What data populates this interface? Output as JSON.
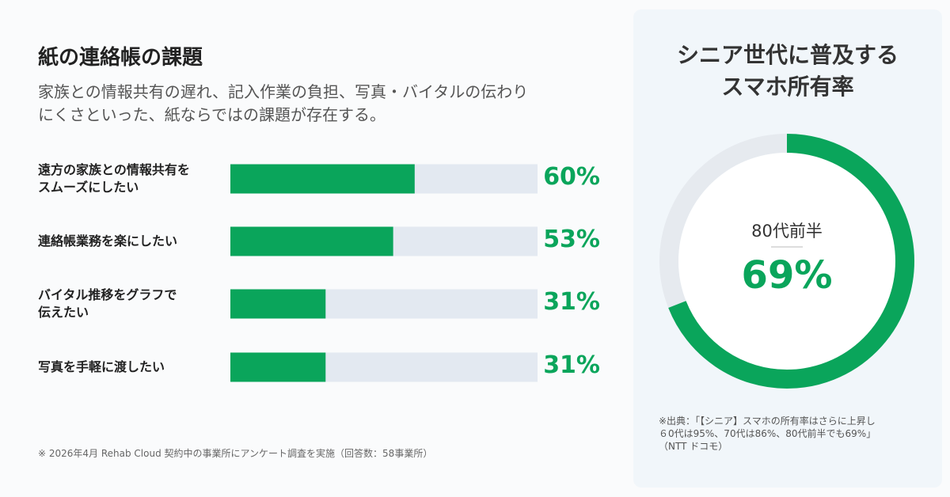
{
  "chart_data": [
    {
      "type": "hbar",
      "title": "紙の連絡帳の課題",
      "subtitle": "家族との情報共有の遅れ、記入作業の負担、写真・バイタルの伝わり\nにくさといった、紙ならではの課題が存在する。",
      "categories": [
        "遠方の家族との情報共有を\nスムーズにしたい",
        "連絡帳業務を楽にしたい",
        "バイタル推移をグラフで\n伝えたい",
        "写真を手軽に渡したい"
      ],
      "values": [
        60,
        53,
        31,
        31
      ],
      "value_labels": [
        "60%",
        "53%",
        "31%",
        "31%"
      ],
      "xlim": [
        0,
        100
      ],
      "color": "#0aa55b",
      "track_color": "#e3e9f1",
      "footnote": "※ 2026年4月 Rehab Cloud 契約中の事業所にアンケート調査を実施（回答数：58事業所）"
    },
    {
      "type": "donut",
      "title": "シニア世代に普及する\nスマホ所有率",
      "label": "80代前半",
      "values": [
        69
      ],
      "value_labels": [
        "69%"
      ],
      "ylim": [
        0,
        100
      ],
      "color": "#0aa55b",
      "track_color": "#e6eaef",
      "source": "※出典：「【シニア】スマホの所有率はさらに上昇し\n６0代は95%、70代は86%、80代前半でも69%」\n（NTT ドコモ）"
    }
  ]
}
